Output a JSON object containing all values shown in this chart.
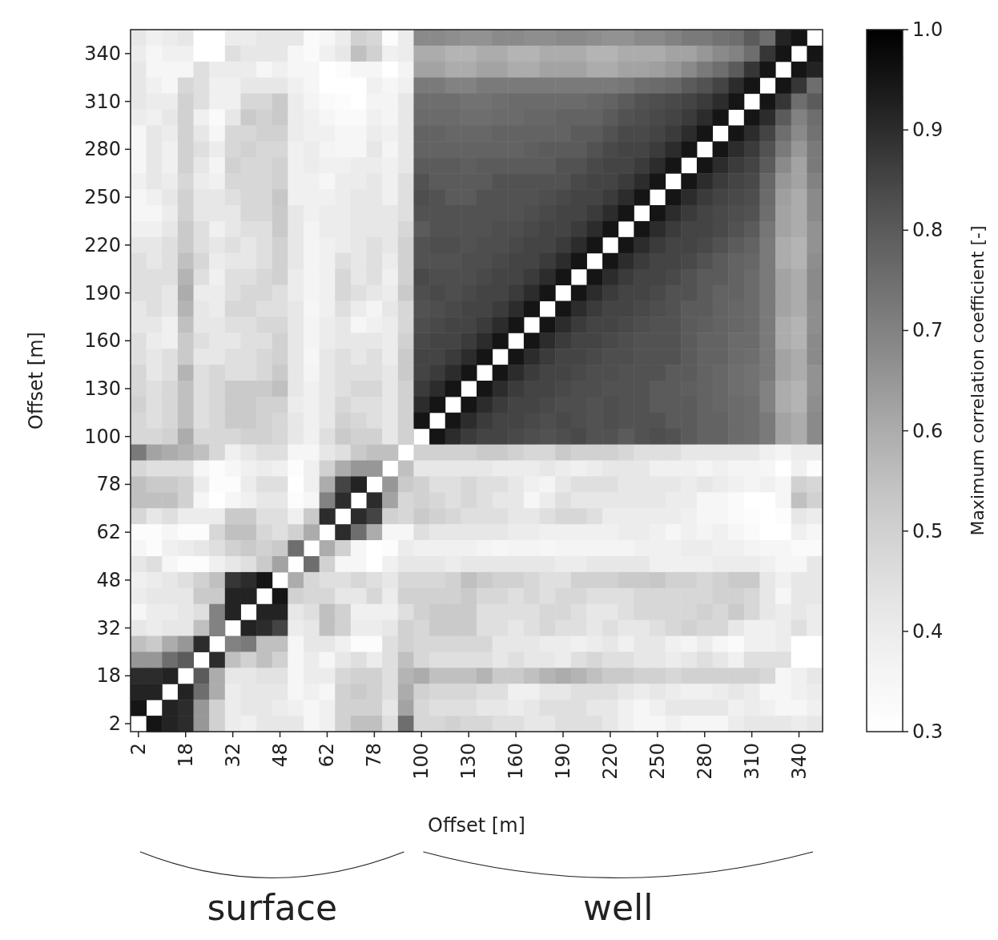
{
  "chart_data": {
    "type": "heatmap",
    "xlabel": "Offset [m]",
    "ylabel": "Offset [m]",
    "clabel": "Maximum correlation coefficient [-]",
    "annotations": [
      "surface",
      "well"
    ],
    "categories": [
      "2",
      null,
      null,
      "18",
      null,
      null,
      "32",
      null,
      null,
      "48",
      null,
      null,
      "62",
      null,
      null,
      "78",
      null,
      null,
      "100",
      null,
      null,
      "130",
      null,
      null,
      "160",
      null,
      null,
      "190",
      null,
      null,
      "220",
      null,
      null,
      "250",
      null,
      null,
      "280",
      null,
      null,
      "310",
      null,
      null,
      "340",
      null
    ],
    "y_categories": [
      null,
      "340",
      null,
      null,
      "310",
      null,
      null,
      "280",
      null,
      null,
      "250",
      null,
      null,
      "220",
      null,
      null,
      "190",
      null,
      null,
      "160",
      null,
      null,
      "130",
      null,
      null,
      "100",
      null,
      null,
      "78",
      null,
      null,
      "62",
      null,
      null,
      "48",
      null,
      null,
      "32",
      null,
      null,
      "18",
      null,
      null,
      "2"
    ],
    "clim": [
      0.3,
      1.0
    ],
    "cticks": [
      0.3,
      0.4,
      0.5,
      0.6,
      0.7,
      0.8,
      0.9,
      {
        "value": 1.0,
        "label": "1.0"
      }
    ],
    "cells": [
      [
        0.42,
        0.38,
        0.4,
        0.42,
        0.3,
        0.3,
        0.4,
        0.4,
        0.42,
        0.42,
        0.42,
        0.33,
        0.35,
        0.4,
        0.5,
        0.48,
        0.32,
        0.4,
        0.68,
        0.68,
        0.67,
        0.66,
        0.66,
        0.68,
        0.68,
        0.67,
        0.67,
        0.68,
        0.68,
        0.67,
        0.66,
        0.66,
        0.68,
        0.68,
        0.7,
        0.72,
        0.72,
        0.74,
        0.75,
        0.8,
        0.75,
        0.92,
        0.95,
        null
      ],
      [
        0.4,
        0.35,
        0.38,
        0.38,
        0.3,
        0.3,
        0.45,
        0.42,
        0.42,
        0.42,
        0.35,
        0.33,
        0.38,
        0.42,
        0.55,
        0.5,
        0.38,
        0.4,
        0.6,
        0.6,
        0.58,
        0.58,
        0.6,
        0.6,
        0.58,
        0.58,
        0.6,
        0.6,
        0.6,
        0.58,
        0.58,
        0.6,
        0.6,
        0.6,
        0.62,
        0.62,
        0.65,
        0.68,
        0.7,
        0.75,
        0.88,
        0.95,
        null,
        0.95
      ],
      [
        0.42,
        0.35,
        0.35,
        0.35,
        0.45,
        0.4,
        0.4,
        0.4,
        0.35,
        0.38,
        0.35,
        0.35,
        0.3,
        0.32,
        0.35,
        0.35,
        0.3,
        0.36,
        0.62,
        0.62,
        0.6,
        0.6,
        0.62,
        0.62,
        0.6,
        0.6,
        0.62,
        0.62,
        0.62,
        0.6,
        0.6,
        0.62,
        0.62,
        0.63,
        0.65,
        0.68,
        0.72,
        0.75,
        0.8,
        0.88,
        0.95,
        null,
        0.95,
        0.92
      ],
      [
        0.42,
        0.38,
        0.35,
        0.48,
        0.45,
        0.38,
        0.38,
        0.42,
        0.42,
        0.42,
        0.38,
        0.35,
        0.3,
        0.3,
        0.3,
        0.38,
        0.35,
        0.38,
        0.72,
        0.72,
        0.7,
        0.7,
        0.72,
        0.72,
        0.72,
        0.72,
        0.72,
        0.72,
        0.72,
        0.72,
        0.72,
        0.73,
        0.75,
        0.76,
        0.77,
        0.8,
        0.82,
        0.85,
        0.9,
        0.95,
        null,
        0.95,
        0.88,
        0.75
      ],
      [
        0.42,
        0.4,
        0.4,
        0.5,
        0.45,
        0.38,
        0.38,
        0.48,
        0.48,
        0.52,
        0.4,
        0.36,
        0.33,
        0.32,
        0.3,
        0.36,
        0.36,
        0.42,
        0.75,
        0.75,
        0.75,
        0.74,
        0.74,
        0.75,
        0.76,
        0.76,
        0.76,
        0.76,
        0.76,
        0.77,
        0.78,
        0.8,
        0.82,
        0.83,
        0.84,
        0.85,
        0.87,
        0.9,
        0.95,
        null,
        0.95,
        0.88,
        0.75,
        0.8
      ],
      [
        0.4,
        0.38,
        0.42,
        0.5,
        0.38,
        0.33,
        0.42,
        0.52,
        0.5,
        0.52,
        0.4,
        0.38,
        0.35,
        0.33,
        0.33,
        0.38,
        0.36,
        0.42,
        0.76,
        0.76,
        0.76,
        0.75,
        0.75,
        0.76,
        0.76,
        0.77,
        0.77,
        0.78,
        0.78,
        0.78,
        0.8,
        0.82,
        0.83,
        0.84,
        0.85,
        0.87,
        0.9,
        0.95,
        null,
        0.95,
        0.9,
        0.8,
        0.7,
        0.75
      ],
      [
        0.35,
        0.42,
        0.4,
        0.5,
        0.42,
        0.35,
        0.48,
        0.48,
        0.5,
        0.5,
        0.4,
        0.38,
        0.38,
        0.35,
        0.35,
        0.4,
        0.38,
        0.42,
        0.78,
        0.78,
        0.77,
        0.77,
        0.77,
        0.78,
        0.78,
        0.78,
        0.78,
        0.78,
        0.8,
        0.8,
        0.82,
        0.84,
        0.84,
        0.85,
        0.87,
        0.9,
        0.95,
        null,
        0.95,
        0.9,
        0.85,
        0.75,
        0.68,
        0.74
      ],
      [
        0.35,
        0.42,
        0.38,
        0.5,
        0.45,
        0.4,
        0.48,
        0.5,
        0.48,
        0.48,
        0.38,
        0.4,
        0.36,
        0.35,
        0.35,
        0.42,
        0.36,
        0.42,
        0.78,
        0.78,
        0.78,
        0.78,
        0.78,
        0.78,
        0.78,
        0.79,
        0.8,
        0.8,
        0.8,
        0.82,
        0.84,
        0.85,
        0.85,
        0.87,
        0.9,
        0.95,
        null,
        0.95,
        0.9,
        0.87,
        0.82,
        0.72,
        0.65,
        0.72
      ],
      [
        0.35,
        0.42,
        0.38,
        0.5,
        0.42,
        0.36,
        0.5,
        0.48,
        0.48,
        0.5,
        0.38,
        0.4,
        0.38,
        0.38,
        0.4,
        0.4,
        0.38,
        0.42,
        0.8,
        0.8,
        0.8,
        0.79,
        0.8,
        0.8,
        0.8,
        0.8,
        0.8,
        0.82,
        0.82,
        0.84,
        0.85,
        0.85,
        0.87,
        0.9,
        0.95,
        null,
        0.95,
        0.9,
        0.87,
        0.85,
        0.8,
        0.68,
        0.62,
        0.72
      ],
      [
        0.38,
        0.42,
        0.4,
        0.48,
        0.4,
        0.38,
        0.48,
        0.48,
        0.48,
        0.5,
        0.38,
        0.38,
        0.35,
        0.4,
        0.4,
        0.42,
        0.38,
        0.45,
        0.82,
        0.8,
        0.8,
        0.8,
        0.8,
        0.82,
        0.82,
        0.82,
        0.82,
        0.82,
        0.84,
        0.85,
        0.85,
        0.87,
        0.9,
        0.95,
        null,
        0.95,
        0.9,
        0.87,
        0.85,
        0.84,
        0.77,
        0.65,
        0.62,
        0.7
      ],
      [
        0.35,
        0.38,
        0.42,
        0.5,
        0.42,
        0.42,
        0.45,
        0.48,
        0.48,
        0.53,
        0.38,
        0.38,
        0.38,
        0.4,
        0.42,
        0.42,
        0.38,
        0.45,
        0.83,
        0.82,
        0.8,
        0.8,
        0.82,
        0.82,
        0.82,
        0.82,
        0.83,
        0.84,
        0.85,
        0.85,
        0.87,
        0.9,
        0.95,
        null,
        0.95,
        0.9,
        0.87,
        0.85,
        0.84,
        0.83,
        0.76,
        0.63,
        0.6,
        0.68
      ],
      [
        0.35,
        0.35,
        0.4,
        0.5,
        0.42,
        0.42,
        0.42,
        0.48,
        0.48,
        0.52,
        0.42,
        0.38,
        0.4,
        0.4,
        0.42,
        0.42,
        0.42,
        0.45,
        0.82,
        0.82,
        0.82,
        0.82,
        0.82,
        0.82,
        0.82,
        0.83,
        0.84,
        0.85,
        0.85,
        0.87,
        0.9,
        0.95,
        null,
        0.95,
        0.9,
        0.87,
        0.85,
        0.84,
        0.83,
        0.82,
        0.75,
        0.62,
        0.6,
        0.68
      ],
      [
        0.38,
        0.38,
        0.42,
        0.52,
        0.45,
        0.38,
        0.42,
        0.45,
        0.45,
        0.52,
        0.42,
        0.36,
        0.4,
        0.4,
        0.42,
        0.42,
        0.42,
        0.48,
        0.8,
        0.82,
        0.82,
        0.82,
        0.82,
        0.83,
        0.83,
        0.84,
        0.85,
        0.85,
        0.87,
        0.9,
        0.95,
        null,
        0.95,
        0.9,
        0.87,
        0.85,
        0.85,
        0.84,
        0.82,
        0.8,
        0.73,
        0.62,
        0.6,
        0.66
      ],
      [
        0.42,
        0.42,
        0.45,
        0.52,
        0.45,
        0.42,
        0.45,
        0.42,
        0.45,
        0.5,
        0.42,
        0.36,
        0.38,
        0.4,
        0.42,
        0.45,
        0.42,
        0.5,
        0.82,
        0.83,
        0.83,
        0.82,
        0.83,
        0.83,
        0.84,
        0.85,
        0.85,
        0.87,
        0.9,
        0.95,
        null,
        0.95,
        0.9,
        0.87,
        0.85,
        0.85,
        0.84,
        0.82,
        0.8,
        0.78,
        0.72,
        0.6,
        0.58,
        0.66
      ],
      [
        0.45,
        0.42,
        0.45,
        0.55,
        0.48,
        0.4,
        0.42,
        0.42,
        0.45,
        0.5,
        0.42,
        0.36,
        0.38,
        0.45,
        0.42,
        0.45,
        0.4,
        0.5,
        0.82,
        0.82,
        0.82,
        0.83,
        0.83,
        0.84,
        0.85,
        0.85,
        0.87,
        0.9,
        0.95,
        null,
        0.95,
        0.9,
        0.87,
        0.85,
        0.85,
        0.84,
        0.82,
        0.8,
        0.78,
        0.77,
        0.72,
        0.6,
        0.58,
        0.67
      ],
      [
        0.45,
        0.45,
        0.45,
        0.58,
        0.45,
        0.38,
        0.45,
        0.45,
        0.48,
        0.5,
        0.4,
        0.36,
        0.38,
        0.48,
        0.42,
        0.45,
        0.38,
        0.5,
        0.84,
        0.83,
        0.83,
        0.83,
        0.84,
        0.85,
        0.85,
        0.87,
        0.9,
        0.95,
        null,
        0.95,
        0.9,
        0.87,
        0.85,
        0.85,
        0.84,
        0.82,
        0.8,
        0.8,
        0.78,
        0.76,
        0.72,
        0.62,
        0.6,
        0.68
      ],
      [
        0.45,
        0.45,
        0.42,
        0.6,
        0.4,
        0.4,
        0.45,
        0.48,
        0.48,
        0.45,
        0.4,
        0.36,
        0.38,
        0.48,
        0.45,
        0.42,
        0.4,
        0.52,
        0.83,
        0.84,
        0.83,
        0.84,
        0.85,
        0.85,
        0.87,
        0.9,
        0.95,
        null,
        0.95,
        0.9,
        0.87,
        0.85,
        0.85,
        0.84,
        0.82,
        0.82,
        0.8,
        0.78,
        0.78,
        0.76,
        0.72,
        0.62,
        0.6,
        0.68
      ],
      [
        0.42,
        0.45,
        0.42,
        0.58,
        0.42,
        0.4,
        0.48,
        0.48,
        0.45,
        0.45,
        0.42,
        0.35,
        0.38,
        0.45,
        0.4,
        0.36,
        0.42,
        0.48,
        0.82,
        0.83,
        0.84,
        0.85,
        0.85,
        0.87,
        0.9,
        0.95,
        null,
        0.95,
        0.9,
        0.87,
        0.85,
        0.85,
        0.84,
        0.83,
        0.82,
        0.8,
        0.8,
        0.78,
        0.77,
        0.76,
        0.72,
        0.62,
        0.6,
        0.67
      ],
      [
        0.42,
        0.42,
        0.38,
        0.55,
        0.42,
        0.42,
        0.45,
        0.45,
        0.48,
        0.48,
        0.42,
        0.36,
        0.4,
        0.42,
        0.35,
        0.38,
        0.4,
        0.48,
        0.83,
        0.84,
        0.85,
        0.85,
        0.87,
        0.9,
        0.95,
        null,
        0.95,
        0.9,
        0.87,
        0.85,
        0.85,
        0.84,
        0.83,
        0.82,
        0.82,
        0.8,
        0.79,
        0.78,
        0.77,
        0.76,
        0.72,
        0.6,
        0.58,
        0.67
      ],
      [
        0.45,
        0.4,
        0.38,
        0.52,
        0.45,
        0.42,
        0.42,
        0.45,
        0.45,
        0.5,
        0.42,
        0.36,
        0.4,
        0.42,
        0.42,
        0.42,
        0.4,
        0.5,
        0.84,
        0.85,
        0.85,
        0.87,
        0.9,
        0.95,
        null,
        0.95,
        0.9,
        0.87,
        0.85,
        0.85,
        0.84,
        0.83,
        0.82,
        0.82,
        0.82,
        0.8,
        0.78,
        0.78,
        0.76,
        0.76,
        0.72,
        0.6,
        0.58,
        0.68
      ],
      [
        0.45,
        0.42,
        0.45,
        0.52,
        0.42,
        0.42,
        0.45,
        0.45,
        0.48,
        0.5,
        0.42,
        0.35,
        0.42,
        0.45,
        0.42,
        0.45,
        0.4,
        0.52,
        0.85,
        0.85,
        0.87,
        0.9,
        0.95,
        null,
        0.95,
        0.9,
        0.87,
        0.85,
        0.85,
        0.84,
        0.83,
        0.83,
        0.82,
        0.82,
        0.82,
        0.8,
        0.78,
        0.78,
        0.76,
        0.75,
        0.72,
        0.62,
        0.6,
        0.68
      ],
      [
        0.48,
        0.42,
        0.45,
        0.58,
        0.45,
        0.48,
        0.45,
        0.45,
        0.48,
        0.52,
        0.42,
        0.36,
        0.42,
        0.45,
        0.45,
        0.45,
        0.42,
        0.52,
        0.85,
        0.87,
        0.9,
        0.95,
        null,
        0.95,
        0.9,
        0.87,
        0.85,
        0.85,
        0.84,
        0.83,
        0.83,
        0.82,
        0.82,
        0.82,
        0.8,
        0.8,
        0.78,
        0.77,
        0.75,
        0.74,
        0.72,
        0.62,
        0.6,
        0.66
      ],
      [
        0.48,
        0.45,
        0.48,
        0.55,
        0.45,
        0.48,
        0.52,
        0.52,
        0.52,
        0.55,
        0.42,
        0.38,
        0.42,
        0.45,
        0.48,
        0.48,
        0.42,
        0.5,
        0.87,
        0.9,
        0.95,
        null,
        0.95,
        0.9,
        0.87,
        0.85,
        0.85,
        0.84,
        0.83,
        0.83,
        0.82,
        0.82,
        0.82,
        0.8,
        0.8,
        0.79,
        0.78,
        0.77,
        0.75,
        0.74,
        0.7,
        0.6,
        0.58,
        0.66
      ],
      [
        0.5,
        0.45,
        0.48,
        0.55,
        0.45,
        0.48,
        0.52,
        0.52,
        0.5,
        0.5,
        0.4,
        0.38,
        0.42,
        0.48,
        0.45,
        0.45,
        0.42,
        0.5,
        0.9,
        0.95,
        null,
        0.95,
        0.9,
        0.87,
        0.85,
        0.85,
        0.84,
        0.83,
        0.83,
        0.82,
        0.83,
        0.82,
        0.82,
        0.8,
        0.8,
        0.8,
        0.78,
        0.77,
        0.76,
        0.75,
        0.7,
        0.6,
        0.58,
        0.67
      ],
      [
        0.48,
        0.45,
        0.48,
        0.55,
        0.45,
        0.48,
        0.52,
        0.52,
        0.5,
        0.48,
        0.42,
        0.38,
        0.42,
        0.5,
        0.48,
        0.45,
        0.42,
        0.5,
        0.95,
        null,
        0.95,
        0.9,
        0.87,
        0.85,
        0.85,
        0.84,
        0.83,
        0.84,
        0.83,
        0.82,
        0.83,
        0.82,
        0.82,
        0.82,
        0.8,
        0.8,
        0.78,
        0.78,
        0.76,
        0.75,
        0.72,
        0.62,
        0.6,
        0.68
      ],
      [
        0.48,
        0.48,
        0.5,
        0.6,
        0.48,
        0.48,
        0.48,
        0.5,
        0.5,
        0.48,
        0.42,
        0.38,
        0.45,
        0.52,
        0.5,
        0.5,
        0.42,
        0.5,
        null,
        0.95,
        0.9,
        0.87,
        0.85,
        0.85,
        0.84,
        0.83,
        0.82,
        0.83,
        0.84,
        0.82,
        0.82,
        0.8,
        0.82,
        0.83,
        0.82,
        0.8,
        0.78,
        0.78,
        0.76,
        0.75,
        0.72,
        0.62,
        0.6,
        0.68
      ],
      [
        0.72,
        0.62,
        0.6,
        0.58,
        0.55,
        0.48,
        0.38,
        0.42,
        0.45,
        0.45,
        0.35,
        0.35,
        0.42,
        0.45,
        0.52,
        0.55,
        0.55,
        null,
        0.5,
        0.5,
        0.5,
        0.5,
        0.52,
        0.52,
        0.5,
        0.48,
        0.48,
        0.52,
        0.5,
        0.5,
        0.5,
        0.48,
        0.45,
        0.45,
        0.45,
        0.42,
        0.42,
        0.42,
        0.42,
        0.42,
        0.38,
        0.36,
        0.4,
        0.4
      ],
      [
        0.48,
        0.45,
        0.45,
        0.45,
        0.35,
        0.32,
        0.35,
        0.38,
        0.4,
        0.38,
        0.32,
        0.38,
        0.5,
        0.6,
        0.65,
        0.65,
        null,
        0.55,
        0.42,
        0.42,
        0.42,
        0.42,
        0.42,
        0.4,
        0.4,
        0.4,
        0.42,
        0.4,
        0.38,
        0.4,
        0.42,
        0.42,
        0.42,
        0.38,
        0.38,
        0.38,
        0.36,
        0.38,
        0.36,
        0.36,
        0.35,
        0.3,
        0.38,
        0.32
      ],
      [
        0.55,
        0.52,
        0.52,
        0.5,
        0.4,
        0.32,
        0.32,
        0.4,
        0.45,
        0.45,
        0.3,
        0.38,
        0.6,
        0.85,
        0.92,
        null,
        0.65,
        0.52,
        0.5,
        0.45,
        0.45,
        0.48,
        0.45,
        0.45,
        0.42,
        0.38,
        0.36,
        0.42,
        0.45,
        0.45,
        0.45,
        0.42,
        0.42,
        0.42,
        0.42,
        0.4,
        0.42,
        0.4,
        0.38,
        0.36,
        0.38,
        0.35,
        0.5,
        0.48
      ],
      [
        0.55,
        0.55,
        0.55,
        0.5,
        0.35,
        0.3,
        0.35,
        0.38,
        0.42,
        0.42,
        0.32,
        0.35,
        0.7,
        0.9,
        null,
        0.9,
        0.62,
        0.48,
        0.5,
        0.48,
        0.45,
        0.48,
        0.45,
        0.42,
        0.42,
        0.35,
        0.4,
        0.45,
        0.42,
        0.42,
        0.42,
        0.42,
        0.42,
        0.42,
        0.4,
        0.4,
        0.35,
        0.35,
        0.33,
        0.3,
        0.3,
        0.35,
        0.55,
        0.5
      ],
      [
        0.48,
        0.42,
        0.45,
        0.4,
        0.4,
        0.4,
        0.52,
        0.52,
        0.45,
        0.45,
        0.38,
        0.52,
        0.9,
        null,
        0.9,
        0.85,
        0.5,
        0.48,
        0.52,
        0.5,
        0.48,
        0.45,
        0.45,
        0.45,
        0.42,
        0.42,
        0.45,
        0.48,
        0.48,
        0.45,
        0.4,
        0.4,
        0.4,
        0.4,
        0.4,
        0.38,
        0.35,
        0.35,
        0.33,
        0.32,
        0.3,
        0.32,
        0.42,
        0.4
      ],
      [
        0.32,
        0.32,
        0.35,
        0.32,
        0.32,
        0.48,
        0.55,
        0.55,
        0.48,
        0.45,
        0.5,
        0.6,
        null,
        0.9,
        0.75,
        0.6,
        0.35,
        0.35,
        0.45,
        0.42,
        0.42,
        0.42,
        0.42,
        0.42,
        0.4,
        0.4,
        0.38,
        0.38,
        0.38,
        0.38,
        0.38,
        0.4,
        0.4,
        0.38,
        0.35,
        0.38,
        0.36,
        0.38,
        0.35,
        0.33,
        0.3,
        0.3,
        0.38,
        0.35
      ],
      [
        0.35,
        0.32,
        0.38,
        0.4,
        0.42,
        0.45,
        0.5,
        0.52,
        0.5,
        0.52,
        0.75,
        null,
        0.6,
        0.5,
        0.35,
        0.3,
        0.32,
        0.4,
        0.38,
        0.38,
        0.38,
        0.38,
        0.36,
        0.35,
        0.36,
        0.36,
        0.35,
        0.36,
        0.36,
        0.36,
        0.36,
        0.36,
        0.38,
        0.38,
        0.38,
        0.4,
        0.4,
        0.38,
        0.38,
        0.36,
        0.35,
        0.35,
        0.33,
        0.33
      ],
      [
        0.42,
        0.45,
        0.35,
        0.32,
        0.32,
        0.38,
        0.42,
        0.45,
        0.52,
        0.62,
        null,
        0.75,
        0.5,
        0.35,
        0.35,
        0.3,
        0.38,
        0.42,
        0.42,
        0.42,
        0.4,
        0.42,
        0.42,
        0.42,
        0.42,
        0.42,
        0.42,
        0.4,
        0.4,
        0.42,
        0.42,
        0.42,
        0.42,
        0.38,
        0.38,
        0.38,
        0.38,
        0.4,
        0.4,
        0.4,
        0.38,
        0.35,
        0.35,
        0.42
      ],
      [
        0.38,
        0.4,
        0.42,
        0.45,
        0.5,
        0.55,
        0.88,
        0.9,
        0.95,
        null,
        0.6,
        0.48,
        0.45,
        0.45,
        0.48,
        0.45,
        0.42,
        0.48,
        0.48,
        0.48,
        0.5,
        0.55,
        0.52,
        0.5,
        0.5,
        0.48,
        0.45,
        0.45,
        0.5,
        0.5,
        0.5,
        0.52,
        0.52,
        0.53,
        0.5,
        0.5,
        0.48,
        0.5,
        0.52,
        0.52,
        0.42,
        0.38,
        0.42,
        0.42
      ],
      [
        0.4,
        0.42,
        0.42,
        0.42,
        0.52,
        0.52,
        0.92,
        0.92,
        null,
        0.95,
        0.5,
        0.48,
        0.48,
        0.42,
        0.42,
        0.48,
        0.4,
        0.5,
        0.5,
        0.5,
        0.5,
        0.52,
        0.48,
        0.48,
        0.45,
        0.48,
        0.45,
        0.48,
        0.48,
        0.45,
        0.45,
        0.45,
        0.48,
        0.48,
        0.48,
        0.48,
        0.48,
        0.5,
        0.5,
        0.48,
        0.42,
        0.35,
        0.42,
        0.42
      ],
      [
        0.35,
        0.4,
        0.4,
        0.42,
        0.45,
        0.7,
        0.92,
        null,
        0.92,
        0.92,
        0.42,
        0.45,
        0.55,
        0.5,
        0.38,
        0.38,
        0.38,
        0.45,
        0.5,
        0.52,
        0.52,
        0.52,
        0.45,
        0.45,
        0.45,
        0.45,
        0.48,
        0.48,
        0.45,
        0.42,
        0.42,
        0.45,
        0.48,
        0.48,
        0.48,
        0.48,
        0.5,
        0.48,
        0.52,
        0.48,
        0.42,
        0.4,
        0.42,
        0.4
      ],
      [
        0.42,
        0.4,
        0.42,
        0.42,
        0.55,
        0.7,
        null,
        0.92,
        0.9,
        0.85,
        0.4,
        0.42,
        0.55,
        0.5,
        0.4,
        0.4,
        0.42,
        0.5,
        0.48,
        0.52,
        0.52,
        0.52,
        0.45,
        0.45,
        0.42,
        0.45,
        0.48,
        0.45,
        0.45,
        0.42,
        0.45,
        0.42,
        0.42,
        0.45,
        0.48,
        0.5,
        0.48,
        0.48,
        0.42,
        0.38,
        0.38,
        0.4,
        0.45,
        0.4
      ],
      [
        0.55,
        0.52,
        0.6,
        0.65,
        0.9,
        null,
        0.7,
        0.72,
        0.55,
        0.55,
        0.35,
        0.42,
        0.42,
        0.38,
        0.32,
        0.32,
        0.45,
        0.5,
        0.48,
        0.48,
        0.48,
        0.48,
        0.48,
        0.42,
        0.42,
        0.42,
        0.4,
        0.4,
        0.38,
        0.4,
        0.42,
        0.38,
        0.42,
        0.42,
        0.38,
        0.36,
        0.4,
        0.35,
        0.33,
        0.38,
        0.38,
        0.4,
        0.3,
        0.3
      ],
      [
        0.65,
        0.65,
        0.75,
        0.8,
        null,
        0.9,
        0.55,
        0.5,
        0.55,
        0.5,
        0.35,
        0.4,
        0.35,
        0.42,
        0.45,
        0.4,
        0.45,
        0.55,
        0.48,
        0.45,
        0.45,
        0.45,
        0.45,
        0.42,
        0.45,
        0.42,
        0.42,
        0.4,
        0.45,
        0.48,
        0.45,
        0.45,
        0.42,
        0.42,
        0.4,
        0.42,
        0.45,
        0.42,
        0.38,
        0.45,
        0.45,
        0.45,
        0.3,
        0.3
      ],
      [
        0.9,
        0.9,
        0.92,
        null,
        0.8,
        0.6,
        0.42,
        0.42,
        0.44,
        0.44,
        0.35,
        0.4,
        0.4,
        0.48,
        0.5,
        0.5,
        0.45,
        0.58,
        0.6,
        0.55,
        0.55,
        0.55,
        0.58,
        0.52,
        0.52,
        0.55,
        0.58,
        0.6,
        0.58,
        0.55,
        0.52,
        0.52,
        0.5,
        0.5,
        0.48,
        0.5,
        0.5,
        0.5,
        0.5,
        0.5,
        0.48,
        0.35,
        0.38,
        0.42
      ],
      [
        0.92,
        0.92,
        null,
        0.92,
        0.75,
        0.6,
        0.4,
        0.42,
        0.42,
        0.42,
        0.35,
        0.38,
        0.35,
        0.5,
        0.52,
        0.5,
        0.45,
        0.6,
        0.5,
        0.48,
        0.48,
        0.48,
        0.45,
        0.45,
        0.38,
        0.38,
        0.42,
        0.42,
        0.45,
        0.45,
        0.45,
        0.42,
        0.4,
        0.42,
        0.4,
        0.38,
        0.38,
        0.4,
        0.42,
        0.4,
        0.35,
        0.35,
        0.38,
        0.4
      ],
      [
        0.95,
        null,
        0.92,
        0.9,
        0.65,
        0.5,
        0.4,
        0.42,
        0.42,
        0.4,
        0.38,
        0.35,
        0.38,
        0.5,
        0.5,
        0.5,
        0.42,
        0.62,
        0.48,
        0.45,
        0.45,
        0.45,
        0.42,
        0.42,
        0.4,
        0.42,
        0.45,
        0.45,
        0.45,
        0.42,
        0.42,
        0.38,
        0.35,
        0.38,
        0.42,
        0.42,
        0.42,
        0.42,
        0.38,
        0.4,
        0.38,
        0.35,
        0.35,
        0.38
      ],
      [
        null,
        0.95,
        0.92,
        0.9,
        0.65,
        0.5,
        0.4,
        0.38,
        0.42,
        0.42,
        0.42,
        0.35,
        0.38,
        0.5,
        0.55,
        0.55,
        0.45,
        0.75,
        0.48,
        0.48,
        0.5,
        0.48,
        0.48,
        0.45,
        0.45,
        0.42,
        0.42,
        0.45,
        0.45,
        0.45,
        0.42,
        0.38,
        0.35,
        0.35,
        0.38,
        0.35,
        0.35,
        0.35,
        0.4,
        0.42,
        0.42,
        0.42,
        0.4,
        0.42
      ]
    ]
  }
}
